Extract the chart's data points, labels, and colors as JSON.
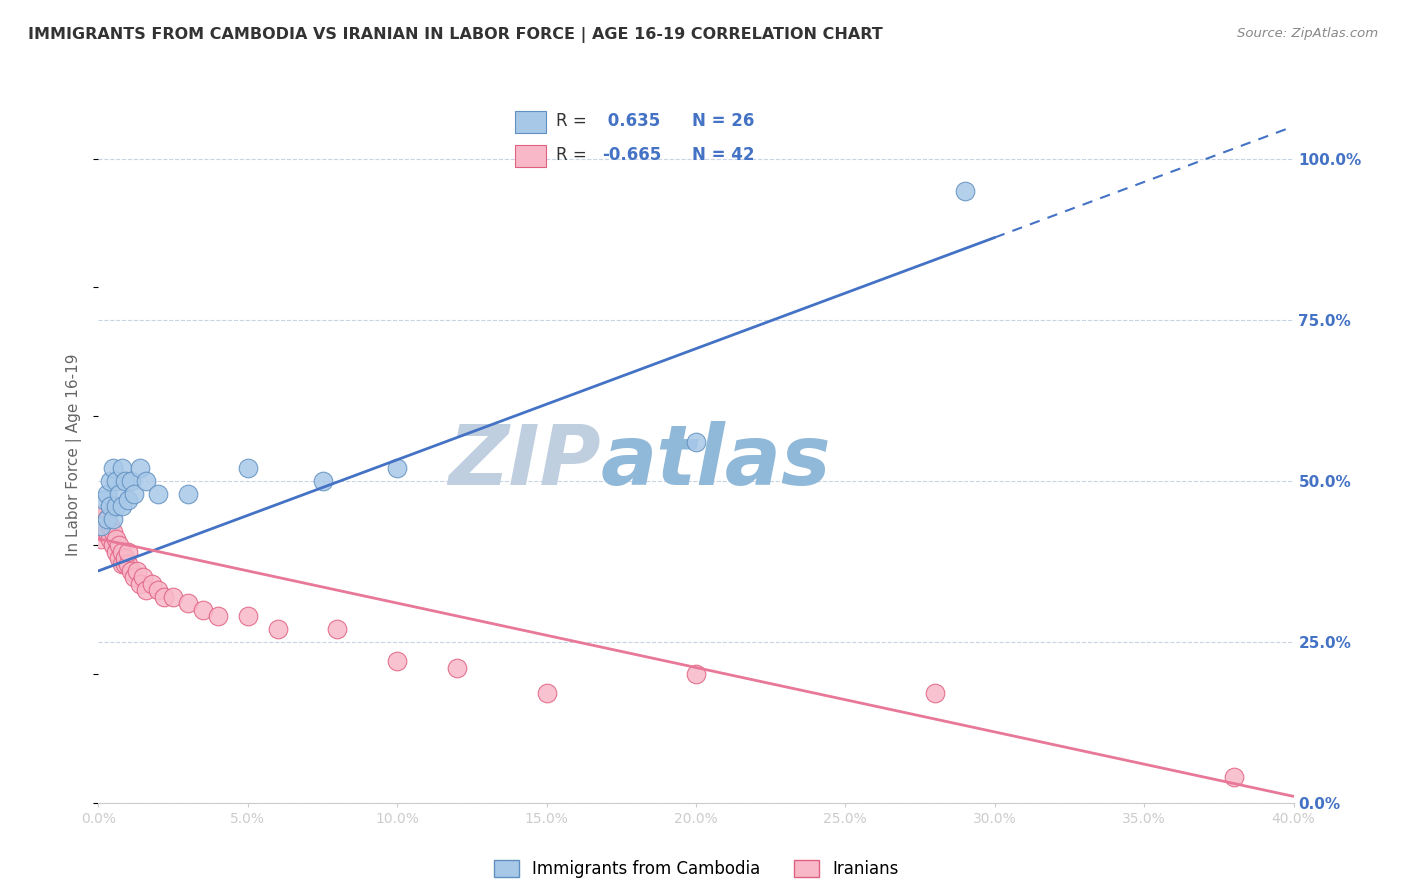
{
  "title": "IMMIGRANTS FROM CAMBODIA VS IRANIAN IN LABOR FORCE | AGE 16-19 CORRELATION CHART",
  "source": "Source: ZipAtlas.com",
  "ylabel": "In Labor Force | Age 16-19",
  "legend_labels": [
    "Immigrants from Cambodia",
    "Iranians"
  ],
  "r_cambodia": 0.635,
  "n_cambodia": 26,
  "r_iranian": -0.665,
  "n_iranian": 42,
  "x_min": 0.0,
  "x_max": 0.4,
  "y_min": 0.0,
  "y_max": 1.08,
  "color_cambodia": "#a8c8e8",
  "color_iranian": "#f8b8c8",
  "color_cambodia_edge": "#6090c0",
  "color_iranian_edge": "#e06080",
  "trend_color_cambodia": "#4472c4",
  "trend_color_iranian": "#e87898",
  "background_color": "#ffffff",
  "grid_color": "#c8d4e4",
  "title_color": "#333333",
  "watermark_color_zip": "#c0cfe0",
  "watermark_color_atlas": "#90b8d8",
  "right_axis_color": "#4472c4",
  "axis_label_color": "#666666",
  "source_color": "#888888",
  "cambodia_x": [
    0.001,
    0.002,
    0.003,
    0.003,
    0.004,
    0.004,
    0.005,
    0.005,
    0.006,
    0.006,
    0.007,
    0.008,
    0.008,
    0.009,
    0.01,
    0.011,
    0.012,
    0.014,
    0.016,
    0.02,
    0.03,
    0.05,
    0.075,
    0.1,
    0.2,
    0.29
  ],
  "cambodia_y": [
    0.43,
    0.47,
    0.44,
    0.48,
    0.5,
    0.46,
    0.52,
    0.44,
    0.5,
    0.46,
    0.48,
    0.52,
    0.46,
    0.5,
    0.47,
    0.5,
    0.48,
    0.52,
    0.5,
    0.48,
    0.48,
    0.52,
    0.5,
    0.52,
    0.56,
    0.95
  ],
  "iranian_x": [
    0.001,
    0.001,
    0.002,
    0.002,
    0.003,
    0.003,
    0.004,
    0.004,
    0.005,
    0.005,
    0.006,
    0.006,
    0.007,
    0.007,
    0.008,
    0.008,
    0.009,
    0.009,
    0.01,
    0.01,
    0.011,
    0.012,
    0.013,
    0.014,
    0.015,
    0.016,
    0.018,
    0.02,
    0.022,
    0.025,
    0.03,
    0.035,
    0.04,
    0.05,
    0.06,
    0.08,
    0.1,
    0.12,
    0.15,
    0.2,
    0.28,
    0.38
  ],
  "iranian_y": [
    0.41,
    0.44,
    0.42,
    0.45,
    0.42,
    0.44,
    0.41,
    0.43,
    0.4,
    0.42,
    0.39,
    0.41,
    0.38,
    0.4,
    0.37,
    0.39,
    0.37,
    0.38,
    0.37,
    0.39,
    0.36,
    0.35,
    0.36,
    0.34,
    0.35,
    0.33,
    0.34,
    0.33,
    0.32,
    0.32,
    0.31,
    0.3,
    0.29,
    0.29,
    0.27,
    0.27,
    0.22,
    0.21,
    0.17,
    0.2,
    0.17,
    0.04
  ],
  "yticks": [
    0.0,
    0.25,
    0.5,
    0.75,
    1.0
  ],
  "ytick_labels_right": [
    "0.0%",
    "25.0%",
    "50.0%",
    "75.0%",
    "100.0%"
  ],
  "xticks": [
    0.0,
    0.05,
    0.1,
    0.15,
    0.2,
    0.25,
    0.3,
    0.35,
    0.4
  ],
  "xtick_labels": [
    "0.0%",
    "5.0%",
    "10.0%",
    "15.0%",
    "20.0%",
    "25.0%",
    "30.0%",
    "35.0%",
    "40.0%"
  ],
  "trend_cambodia_x0": 0.0,
  "trend_cambodia_y0": 0.36,
  "trend_cambodia_x1": 0.4,
  "trend_cambodia_y1": 1.05,
  "trend_iranian_x0": 0.0,
  "trend_iranian_y0": 0.41,
  "trend_iranian_x1": 0.4,
  "trend_iranian_y1": 0.01
}
